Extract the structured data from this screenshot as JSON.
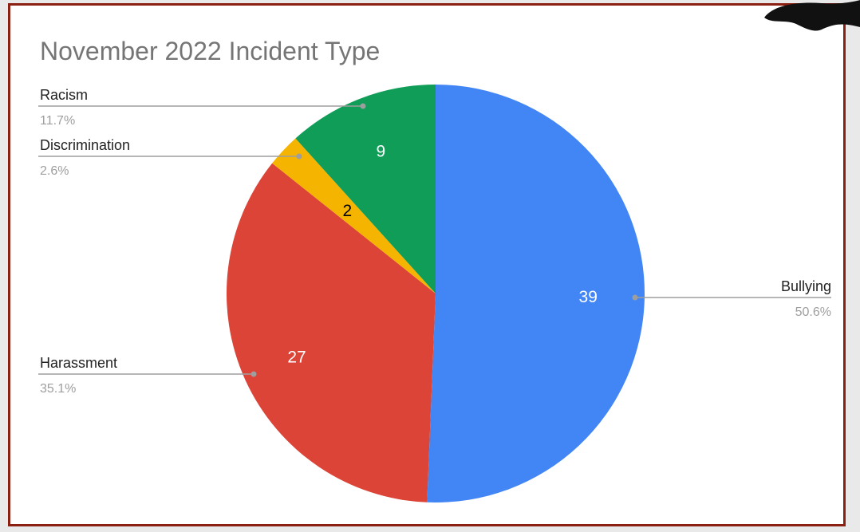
{
  "chart_data": {
    "type": "pie",
    "title": "November 2022 Incident Type",
    "slices": [
      {
        "label": "Bullying",
        "value": 39,
        "percent": "50.6%",
        "color": "#4285f4"
      },
      {
        "label": "Harassment",
        "value": 27,
        "percent": "35.1%",
        "color": "#db4437"
      },
      {
        "label": "Discrimination",
        "value": 2,
        "percent": "2.6%",
        "color": "#f4b400"
      },
      {
        "label": "Racism",
        "value": 9,
        "percent": "11.7%",
        "color": "#0f9d58"
      }
    ],
    "legend": "none",
    "data_labels": "inside"
  }
}
